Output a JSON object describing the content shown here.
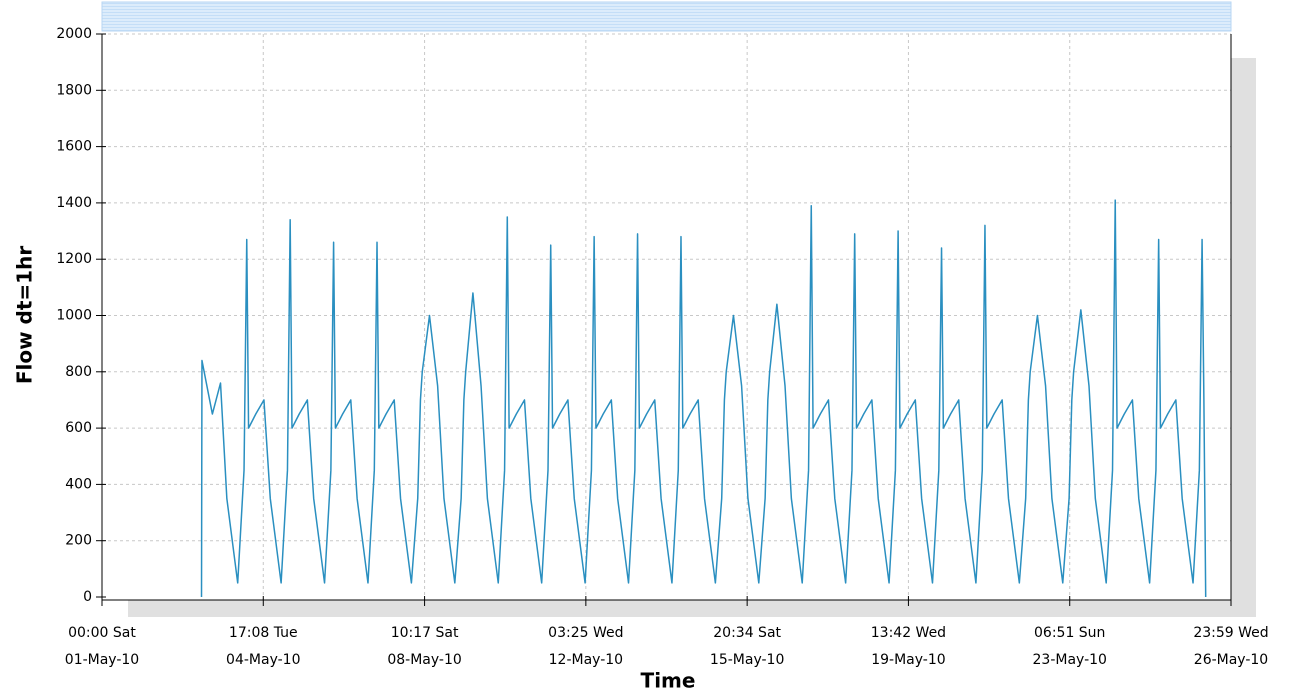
{
  "chart_data": {
    "type": "line",
    "xlabel": "Time",
    "ylabel": "Flow dt=1hr",
    "xlim": [
      "2010-05-01T00:00",
      "2010-05-26T23:59"
    ],
    "xticks": [
      {
        "value": "2010-05-01T00:00",
        "label": [
          "00:00 Sat",
          "01-May-10"
        ]
      },
      {
        "value": "2010-05-04T17:08",
        "label": [
          "17:08 Tue",
          "04-May-10"
        ]
      },
      {
        "value": "2010-05-08T10:17",
        "label": [
          "10:17 Sat",
          "08-May-10"
        ]
      },
      {
        "value": "2010-05-12T03:25",
        "label": [
          "03:25 Wed",
          "12-May-10"
        ]
      },
      {
        "value": "2010-05-15T20:34",
        "label": [
          "20:34 Sat",
          "15-May-10"
        ]
      },
      {
        "value": "2010-05-19T13:42",
        "label": [
          "13:42 Wed",
          "19-May-10"
        ]
      },
      {
        "value": "2010-05-23T06:51",
        "label": [
          "06:51 Sun",
          "23-May-10"
        ]
      },
      {
        "value": "2010-05-26T23:59",
        "label": [
          "23:59 Wed",
          "26-May-10"
        ]
      }
    ],
    "ylim": [
      0,
      2000
    ],
    "yticks": [
      0,
      200,
      400,
      600,
      800,
      1000,
      1200,
      1400,
      1600,
      1800,
      2000
    ],
    "grid": true,
    "x": [
      "2010-05-03T07:00",
      "2010-05-03T07:15",
      "2010-05-03T13:00",
      "2010-05-03T17:30",
      "2010-05-03T21:00",
      "2010-05-04T03:00",
      "2010-05-04T06:30",
      "2010-05-04T08:00",
      "2010-05-04T09:00",
      "2010-05-04T13:00",
      "2010-05-04T17:30",
      "2010-05-04T21:00",
      "2010-05-05T03:00",
      "2010-05-05T06:30",
      "2010-05-05T08:00",
      "2010-05-05T09:00",
      "2010-05-05T13:00",
      "2010-05-05T17:30",
      "2010-05-05T21:00",
      "2010-05-06T03:00",
      "2010-05-06T06:30",
      "2010-05-06T08:00",
      "2010-05-06T09:00",
      "2010-05-06T13:00",
      "2010-05-06T17:30",
      "2010-05-06T21:00",
      "2010-05-07T03:00",
      "2010-05-07T06:30",
      "2010-05-07T08:00",
      "2010-05-07T09:00",
      "2010-05-07T13:00",
      "2010-05-07T17:30",
      "2010-05-07T21:00",
      "2010-05-08T03:00",
      "2010-05-08T06:30",
      "2010-05-08T08:00",
      "2010-05-08T09:00",
      "2010-05-08T13:00",
      "2010-05-08T17:30",
      "2010-05-08T21:00",
      "2010-05-09T03:00",
      "2010-05-09T06:30",
      "2010-05-09T08:00",
      "2010-05-09T09:00",
      "2010-05-09T13:00",
      "2010-05-09T17:30",
      "2010-05-09T21:00",
      "2010-05-10T03:00",
      "2010-05-10T06:30",
      "2010-05-10T08:00",
      "2010-05-10T09:00",
      "2010-05-10T13:00",
      "2010-05-10T17:30",
      "2010-05-10T21:00",
      "2010-05-11T03:00",
      "2010-05-11T06:30",
      "2010-05-11T08:00",
      "2010-05-11T09:00",
      "2010-05-11T13:00",
      "2010-05-11T17:30",
      "2010-05-11T21:00",
      "2010-05-12T03:00",
      "2010-05-12T06:30",
      "2010-05-12T08:00",
      "2010-05-12T09:00",
      "2010-05-12T13:00",
      "2010-05-12T17:30",
      "2010-05-12T21:00",
      "2010-05-13T03:00",
      "2010-05-13T06:30",
      "2010-05-13T08:00",
      "2010-05-13T09:00",
      "2010-05-13T13:00",
      "2010-05-13T17:30",
      "2010-05-13T21:00",
      "2010-05-14T03:00",
      "2010-05-14T06:30",
      "2010-05-14T08:00",
      "2010-05-14T09:00",
      "2010-05-14T13:00",
      "2010-05-14T17:30",
      "2010-05-14T21:00",
      "2010-05-15T03:00",
      "2010-05-15T06:30",
      "2010-05-15T08:00",
      "2010-05-15T09:00",
      "2010-05-15T13:00",
      "2010-05-15T17:30",
      "2010-05-15T21:00",
      "2010-05-16T03:00",
      "2010-05-16T06:30",
      "2010-05-16T08:00",
      "2010-05-16T09:00",
      "2010-05-16T13:00",
      "2010-05-16T17:30",
      "2010-05-16T21:00",
      "2010-05-17T03:00",
      "2010-05-17T06:30",
      "2010-05-17T08:00",
      "2010-05-17T09:00",
      "2010-05-17T13:00",
      "2010-05-17T17:30",
      "2010-05-17T21:00",
      "2010-05-18T03:00",
      "2010-05-18T06:30",
      "2010-05-18T08:00",
      "2010-05-18T09:00",
      "2010-05-18T13:00",
      "2010-05-18T17:30",
      "2010-05-18T21:00",
      "2010-05-19T03:00",
      "2010-05-19T06:30",
      "2010-05-19T08:00",
      "2010-05-19T09:00",
      "2010-05-19T13:00",
      "2010-05-19T17:30",
      "2010-05-19T21:00",
      "2010-05-20T03:00",
      "2010-05-20T06:30",
      "2010-05-20T08:00",
      "2010-05-20T09:00",
      "2010-05-20T13:00",
      "2010-05-20T17:30",
      "2010-05-20T21:00",
      "2010-05-21T03:00",
      "2010-05-21T06:30",
      "2010-05-21T08:00",
      "2010-05-21T09:00",
      "2010-05-21T13:00",
      "2010-05-21T17:30",
      "2010-05-21T21:00",
      "2010-05-22T03:00",
      "2010-05-22T06:30",
      "2010-05-22T08:00",
      "2010-05-22T09:00",
      "2010-05-22T13:00",
      "2010-05-22T17:30",
      "2010-05-22T21:00",
      "2010-05-23T03:00",
      "2010-05-23T06:30",
      "2010-05-23T08:00",
      "2010-05-23T09:00",
      "2010-05-23T13:00",
      "2010-05-23T17:30",
      "2010-05-23T21:00",
      "2010-05-24T03:00",
      "2010-05-24T06:30",
      "2010-05-24T08:00",
      "2010-05-24T09:00",
      "2010-05-24T13:00",
      "2010-05-24T17:30",
      "2010-05-24T21:00",
      "2010-05-25T03:00",
      "2010-05-25T06:30",
      "2010-05-25T08:00",
      "2010-05-25T09:00",
      "2010-05-25T13:00",
      "2010-05-25T17:30",
      "2010-05-25T21:00",
      "2010-05-26T03:00",
      "2010-05-26T06:30",
      "2010-05-26T08:00",
      "2010-05-26T09:00",
      "2010-05-26T10:00"
    ],
    "series": [
      {
        "color": "#2a8fc0",
        "values": [
          0,
          840,
          650,
          760,
          350,
          50,
          450,
          1270,
          600,
          650,
          700,
          350,
          50,
          450,
          1340,
          600,
          650,
          700,
          350,
          50,
          450,
          1260,
          600,
          650,
          700,
          350,
          50,
          450,
          1260,
          600,
          650,
          700,
          350,
          50,
          350,
          700,
          800,
          1000,
          750,
          350,
          50,
          350,
          700,
          800,
          1080,
          750,
          350,
          50,
          450,
          1350,
          600,
          650,
          700,
          350,
          50,
          450,
          1250,
          600,
          650,
          700,
          350,
          50,
          450,
          1280,
          600,
          650,
          700,
          350,
          50,
          450,
          1290,
          600,
          650,
          700,
          350,
          50,
          450,
          1280,
          600,
          650,
          700,
          350,
          50,
          350,
          700,
          800,
          1000,
          750,
          350,
          50,
          350,
          700,
          800,
          1040,
          750,
          350,
          50,
          450,
          1390,
          600,
          650,
          700,
          350,
          50,
          450,
          1290,
          600,
          650,
          700,
          350,
          50,
          450,
          1300,
          600,
          650,
          700,
          350,
          50,
          450,
          1240,
          600,
          650,
          700,
          350,
          50,
          450,
          1320,
          600,
          650,
          700,
          350,
          50,
          350,
          700,
          800,
          1000,
          750,
          350,
          50,
          350,
          700,
          800,
          1020,
          750,
          350,
          50,
          450,
          1410,
          600,
          650,
          700,
          350,
          50,
          450,
          1270,
          600,
          650,
          700,
          350,
          50,
          450,
          1270,
          700,
          0
        ]
      }
    ]
  }
}
